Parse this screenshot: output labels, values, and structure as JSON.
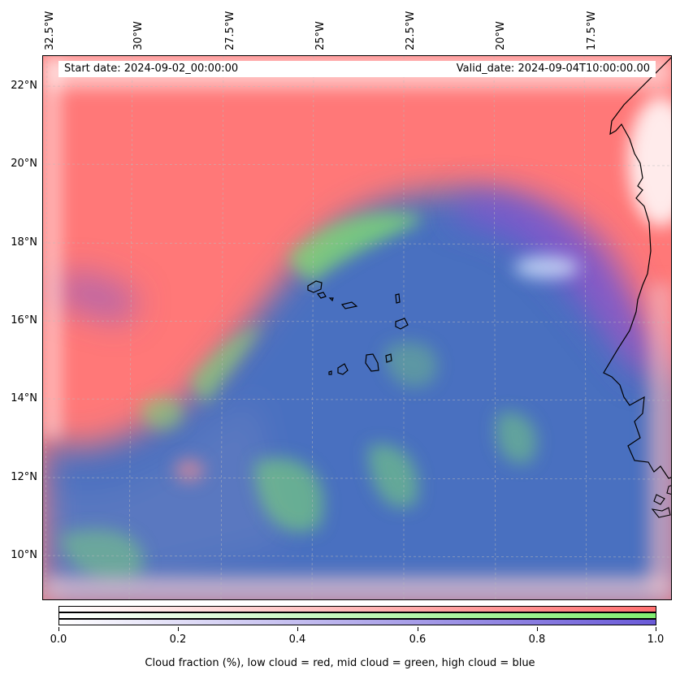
{
  "map": {
    "lon_labels": [
      "32.5°W",
      "30°W",
      "27.5°W",
      "25°W",
      "22.5°W",
      "20°W",
      "17.5°W"
    ],
    "lat_labels": [
      "22°N",
      "20°N",
      "18°N",
      "16°N",
      "14°N",
      "12°N",
      "10°N"
    ],
    "start_date": "Start date: 2024-09-02_00:00:00",
    "valid_date": "Valid_date: 2024-09-04T10:00:00.00",
    "colors": {
      "low_cloud": "#ff7070",
      "mid_cloud": "#80ee70",
      "high_cloud": "#6a5ad8",
      "mixed": "#4a6fc0",
      "coast": "#000000"
    }
  },
  "colorbar": {
    "ticks": [
      "0.0",
      "0.2",
      "0.4",
      "0.6",
      "0.8",
      "1.0"
    ],
    "label": "Cloud fraction (%), low cloud = red, mid cloud = green, high cloud = blue"
  }
}
